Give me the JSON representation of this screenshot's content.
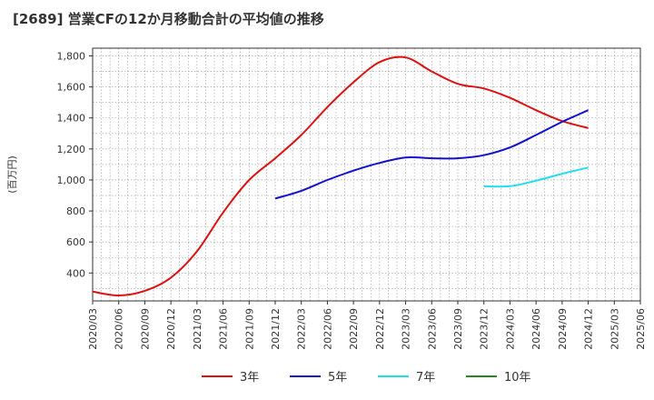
{
  "chart_data": {
    "type": "line",
    "title": "[2689]  営業CFの12か月移動合計の平均値の推移",
    "ylabel": "(百万円)",
    "xlabel": "",
    "ylim": [
      220,
      1850
    ],
    "yticks": [
      400,
      600,
      800,
      1000,
      1200,
      1400,
      1600,
      1800
    ],
    "ytick_labels": [
      "400",
      "600",
      "800",
      "1,000",
      "1,200",
      "1,400",
      "1,600",
      "1,800"
    ],
    "xticks": [
      "2020/03",
      "2020/06",
      "2020/09",
      "2020/12",
      "2021/03",
      "2021/06",
      "2021/09",
      "2021/12",
      "2022/03",
      "2022/06",
      "2022/09",
      "2022/12",
      "2023/03",
      "2023/06",
      "2023/09",
      "2023/12",
      "2024/03",
      "2024/06",
      "2024/09",
      "2024/12",
      "2025/03",
      "2025/06"
    ],
    "x": [
      "2020/03",
      "2020/06",
      "2020/09",
      "2020/12",
      "2021/03",
      "2021/06",
      "2021/09",
      "2021/12",
      "2022/03",
      "2022/06",
      "2022/09",
      "2022/12",
      "2023/03",
      "2023/06",
      "2023/09",
      "2023/12",
      "2024/03",
      "2024/06",
      "2024/09",
      "2024/12"
    ],
    "grid": true,
    "legend_position": "bottom",
    "series": [
      {
        "name": "3年",
        "color": "#dd1111",
        "values": [
          280,
          255,
          285,
          370,
          540,
          790,
          1000,
          1140,
          1290,
          1470,
          1630,
          1760,
          1790,
          1700,
          1620,
          1590,
          1530,
          1450,
          1380,
          1335
        ]
      },
      {
        "name": "5年",
        "color": "#1111cc",
        "values": [
          null,
          null,
          null,
          null,
          null,
          null,
          null,
          880,
          930,
          1000,
          1060,
          1110,
          1145,
          1140,
          1140,
          1160,
          1210,
          1290,
          1375,
          1450
        ]
      },
      {
        "name": "7年",
        "color": "#22ddee",
        "values": [
          null,
          null,
          null,
          null,
          null,
          null,
          null,
          null,
          null,
          null,
          null,
          null,
          null,
          null,
          null,
          960,
          960,
          995,
          1040,
          1080
        ]
      },
      {
        "name": "10年",
        "color": "#228822",
        "values": [
          null,
          null,
          null,
          null,
          null,
          null,
          null,
          null,
          null,
          null,
          null,
          null,
          null,
          null,
          null,
          null,
          null,
          null,
          null,
          null
        ]
      }
    ]
  }
}
